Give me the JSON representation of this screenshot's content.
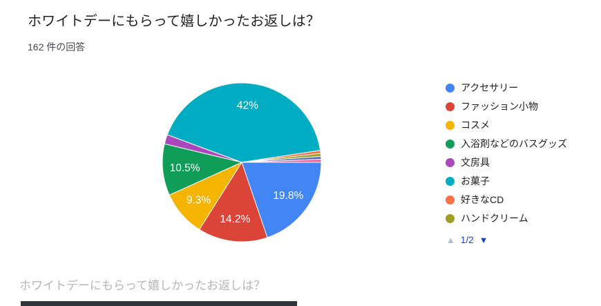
{
  "header": {
    "title": "ホワイトデーにもらって嬉しかったお返しは？",
    "response_count": "162 件の回答"
  },
  "chart_data": {
    "type": "pie",
    "title": "ホワイトデーにもらって嬉しかったお返しは？",
    "total_responses": 162,
    "legend_position": "right",
    "start_angle": "3-oclock",
    "direction": "clockwise",
    "segments": [
      {
        "label": "アクセサリー",
        "percent": 19.8,
        "display": "19.8%",
        "color": "#4285f4",
        "show_label": true,
        "in_legend": true
      },
      {
        "label": "ファッション小物",
        "percent": 14.2,
        "display": "14.2%",
        "color": "#db4437",
        "show_label": true,
        "in_legend": true
      },
      {
        "label": "コスメ",
        "percent": 9.3,
        "display": "9.3%",
        "color": "#f4b400",
        "show_label": true,
        "in_legend": true
      },
      {
        "label": "入浴剤などのバスグッズ",
        "percent": 10.5,
        "display": "10.5%",
        "color": "#0f9d58",
        "show_label": true,
        "in_legend": true
      },
      {
        "label": "文房具",
        "percent": 1.9,
        "display": "",
        "color": "#ab47bc",
        "show_label": false,
        "in_legend": true
      },
      {
        "label": "お菓子",
        "percent": 42,
        "display": "42%",
        "color": "#00acc1",
        "show_label": true,
        "in_legend": true
      },
      {
        "label": "好きなCD",
        "percent": 0.6,
        "display": "",
        "color": "#ff7043",
        "show_label": false,
        "in_legend": true
      },
      {
        "label": "ハンドクリーム",
        "percent": 0.6,
        "display": "",
        "color": "#9e9d24",
        "show_label": false,
        "in_legend": true
      },
      {
        "label": "",
        "percent": 0.6,
        "display": "",
        "color": "#5c6bc0",
        "show_label": false,
        "in_legend": false
      },
      {
        "label": "",
        "percent": 0.6,
        "display": "",
        "color": "#f06292",
        "show_label": false,
        "in_legend": false
      }
    ]
  },
  "legend": {
    "pagination": {
      "up_icon": "▲",
      "page_indicator": "1/2",
      "down_icon": "▼"
    }
  },
  "footer": {
    "next_question_title": "ホワイトデーにもらって嬉しかったお返しは？"
  },
  "colors": {
    "background": "#ffffff",
    "title_text": "#212121",
    "response_count_text": "#45494d",
    "slice_label_text": "#ffffff",
    "legend_text": "#212121",
    "pagination_inactive": "#b6bcc3",
    "pagination_active": "#1c40c5",
    "next_question_text": "#b6b6b6",
    "partial_bar": "#303338"
  }
}
